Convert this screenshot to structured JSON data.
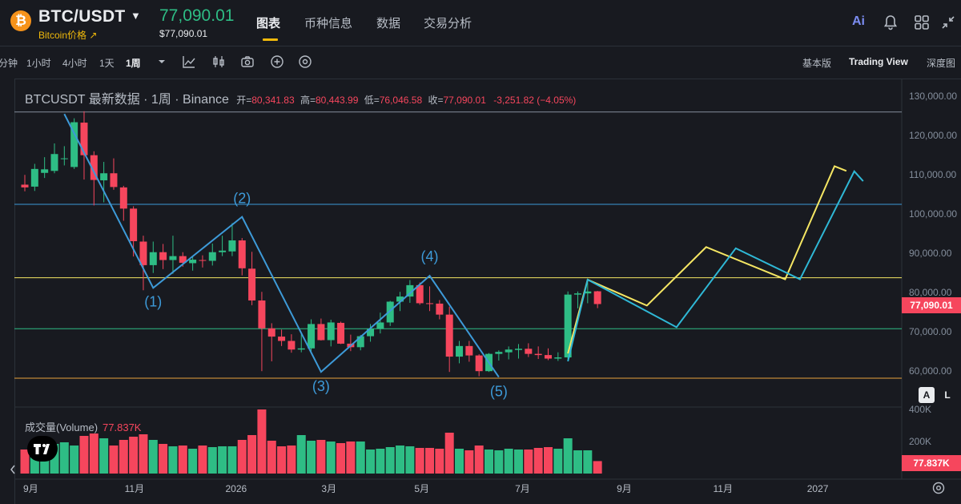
{
  "header": {
    "coin_glyph": "₿",
    "pair": "BTC/USDT",
    "pair_sub": "Bitcoin价格 ↗",
    "price": "77,090.01",
    "price_sub": "$77,090.01",
    "tabs": [
      {
        "label": "图表",
        "active": true
      },
      {
        "label": "币种信息"
      },
      {
        "label": "数据"
      },
      {
        "label": "交易分析"
      }
    ],
    "ai_label": "Ai"
  },
  "toolbar": {
    "intervals": [
      "分钟",
      "1小时",
      "4小时",
      "1天",
      "1周"
    ],
    "active_interval": "1周",
    "views": [
      "基本版",
      "Trading View",
      "深度图"
    ],
    "active_view": "Trading View"
  },
  "legend": {
    "symbol": "BTCUSDT 最新数据 · 1周 · Binance",
    "open_label": "开=",
    "open": "80,341.83",
    "high_label": "高=",
    "high": "80,443.99",
    "low_label": "低=",
    "low": "76,046.58",
    "close_label": "收=",
    "close": "77,090.01",
    "change": "-3,251.82 (−4.05%)"
  },
  "volume": {
    "label": "成交量(Volume)",
    "value": "77.837K",
    "axis": [
      "400K",
      "200K"
    ]
  },
  "price_tag": "77,090.01",
  "scale_buttons": [
    "A",
    "L"
  ],
  "colors": {
    "up": "#2ebd85",
    "down": "#f6465d",
    "accent": "#f0b90b",
    "wave": "#3d9ad8",
    "projection_yellow": "#f5e663",
    "projection_cyan": "#2fb8d6"
  },
  "chart_data": {
    "type": "candlestick",
    "interval": "1周",
    "y_axis_labels": [
      "130,000.00",
      "120,000.00",
      "110,000.00",
      "100,000.00",
      "90,000.00",
      "80,000.00",
      "70,000.00",
      "60,000.00"
    ],
    "y_axis_values": [
      130000,
      120000,
      110000,
      100000,
      90000,
      80000,
      70000,
      60000
    ],
    "x_axis_labels": [
      "9月",
      "11月",
      "2026",
      "3月",
      "5月",
      "7月",
      "9月",
      "11月",
      "2027"
    ],
    "candles": [
      {
        "o": 107500,
        "h": 110000,
        "l": 105800,
        "c": 106800
      },
      {
        "o": 107000,
        "h": 112800,
        "l": 105900,
        "c": 111500
      },
      {
        "o": 110500,
        "h": 114500,
        "l": 109200,
        "c": 111400
      },
      {
        "o": 111000,
        "h": 118000,
        "l": 110400,
        "c": 115300
      },
      {
        "o": 114000,
        "h": 117300,
        "l": 112400,
        "c": 114200
      },
      {
        "o": 112000,
        "h": 124400,
        "l": 111500,
        "c": 123400
      },
      {
        "o": 123300,
        "h": 126200,
        "l": 108800,
        "c": 115000
      },
      {
        "o": 115000,
        "h": 116000,
        "l": 102200,
        "c": 108700
      },
      {
        "o": 108600,
        "h": 113300,
        "l": 103000,
        "c": 110400
      },
      {
        "o": 110400,
        "h": 114200,
        "l": 106200,
        "c": 106900
      },
      {
        "o": 106800,
        "h": 107200,
        "l": 98300,
        "c": 101400
      },
      {
        "o": 101400,
        "h": 102000,
        "l": 89200,
        "c": 93100
      },
      {
        "o": 93000,
        "h": 94500,
        "l": 80600,
        "c": 87000
      },
      {
        "o": 87000,
        "h": 93000,
        "l": 85000,
        "c": 90300
      },
      {
        "o": 90300,
        "h": 92400,
        "l": 86000,
        "c": 88300
      },
      {
        "o": 88300,
        "h": 94500,
        "l": 84800,
        "c": 89300
      },
      {
        "o": 89300,
        "h": 90300,
        "l": 86600,
        "c": 87600
      },
      {
        "o": 87500,
        "h": 89200,
        "l": 85600,
        "c": 88400
      },
      {
        "o": 88300,
        "h": 89500,
        "l": 86400,
        "c": 88100
      },
      {
        "o": 88100,
        "h": 92500,
        "l": 86900,
        "c": 90300
      },
      {
        "o": 90300,
        "h": 94500,
        "l": 89300,
        "c": 90700
      },
      {
        "o": 90500,
        "h": 97700,
        "l": 89300,
        "c": 93300
      },
      {
        "o": 93300,
        "h": 93900,
        "l": 84400,
        "c": 86200
      },
      {
        "o": 86100,
        "h": 90400,
        "l": 76800,
        "c": 78000
      },
      {
        "o": 78000,
        "h": 80200,
        "l": 60000,
        "c": 70900
      },
      {
        "o": 70900,
        "h": 72200,
        "l": 62500,
        "c": 68800
      },
      {
        "o": 68800,
        "h": 70600,
        "l": 66400,
        "c": 67700
      },
      {
        "o": 67700,
        "h": 69400,
        "l": 64700,
        "c": 65500
      },
      {
        "o": 65500,
        "h": 69400,
        "l": 64800,
        "c": 65800
      },
      {
        "o": 65800,
        "h": 73200,
        "l": 65000,
        "c": 72000
      },
      {
        "o": 72000,
        "h": 73400,
        "l": 67800,
        "c": 67900
      },
      {
        "o": 67900,
        "h": 73100,
        "l": 66300,
        "c": 72400
      },
      {
        "o": 72300,
        "h": 72600,
        "l": 66900,
        "c": 67000
      },
      {
        "o": 67000,
        "h": 69300,
        "l": 65100,
        "c": 66100
      },
      {
        "o": 66100,
        "h": 69200,
        "l": 65300,
        "c": 68900
      },
      {
        "o": 68900,
        "h": 72000,
        "l": 67500,
        "c": 70800
      },
      {
        "o": 70800,
        "h": 74900,
        "l": 69600,
        "c": 72400
      },
      {
        "o": 72400,
        "h": 77900,
        "l": 71500,
        "c": 77700
      },
      {
        "o": 77700,
        "h": 80200,
        "l": 75300,
        "c": 79000
      },
      {
        "o": 79000,
        "h": 83200,
        "l": 77400,
        "c": 81900
      },
      {
        "o": 81900,
        "h": 82600,
        "l": 76900,
        "c": 77300
      },
      {
        "o": 77300,
        "h": 81600,
        "l": 75300,
        "c": 77200
      },
      {
        "o": 77200,
        "h": 78100,
        "l": 73200,
        "c": 74400
      },
      {
        "o": 74400,
        "h": 76400,
        "l": 59800,
        "c": 63700
      },
      {
        "o": 63700,
        "h": 67700,
        "l": 62000,
        "c": 66400
      },
      {
        "o": 66400,
        "h": 67700,
        "l": 62400,
        "c": 64000
      },
      {
        "o": 64000,
        "h": 64300,
        "l": 58700,
        "c": 60000
      },
      {
        "o": 60000,
        "h": 64600,
        "l": 59800,
        "c": 64400
      },
      {
        "o": 64400,
        "h": 65300,
        "l": 62700,
        "c": 64900
      },
      {
        "o": 64800,
        "h": 66300,
        "l": 63000,
        "c": 65500
      },
      {
        "o": 65400,
        "h": 66900,
        "l": 63200,
        "c": 65700
      },
      {
        "o": 65700,
        "h": 67100,
        "l": 63600,
        "c": 64400
      },
      {
        "o": 64400,
        "h": 66300,
        "l": 63100,
        "c": 64100
      },
      {
        "o": 64100,
        "h": 65800,
        "l": 62800,
        "c": 63200
      },
      {
        "o": 63200,
        "h": 64800,
        "l": 62600,
        "c": 63500
      },
      {
        "o": 63500,
        "h": 80300,
        "l": 63000,
        "c": 79500
      },
      {
        "o": 79500,
        "h": 80300,
        "l": 76000,
        "c": 79800
      },
      {
        "o": 79800,
        "h": 82800,
        "l": 77300,
        "c": 80300
      },
      {
        "o": 80341.83,
        "h": 80443.99,
        "l": 76046.58,
        "c": 77090.01
      }
    ],
    "volumes_k": [
      150,
      160,
      175,
      185,
      195,
      175,
      235,
      250,
      220,
      175,
      210,
      230,
      245,
      210,
      185,
      170,
      175,
      155,
      175,
      165,
      170,
      170,
      210,
      240,
      400,
      205,
      170,
      175,
      240,
      205,
      210,
      200,
      190,
      200,
      200,
      150,
      155,
      165,
      175,
      170,
      160,
      160,
      155,
      255,
      155,
      145,
      175,
      150,
      145,
      155,
      150,
      150,
      160,
      165,
      155,
      220,
      145,
      145,
      77.837
    ],
    "volume_range": [
      0,
      400
    ],
    "horizontal_levels": [
      {
        "value": 126000,
        "color": "#848e9c"
      },
      {
        "value": 102500,
        "color": "#3d9ad8"
      },
      {
        "value": 83800,
        "color": "#f5e663"
      },
      {
        "value": 70800,
        "color": "#2ebd85"
      },
      {
        "value": 58200,
        "color": "#e8a33d"
      }
    ],
    "wave_labels": [
      "(1)",
      "(2)",
      "(3)",
      "(4)",
      "(5)"
    ]
  }
}
